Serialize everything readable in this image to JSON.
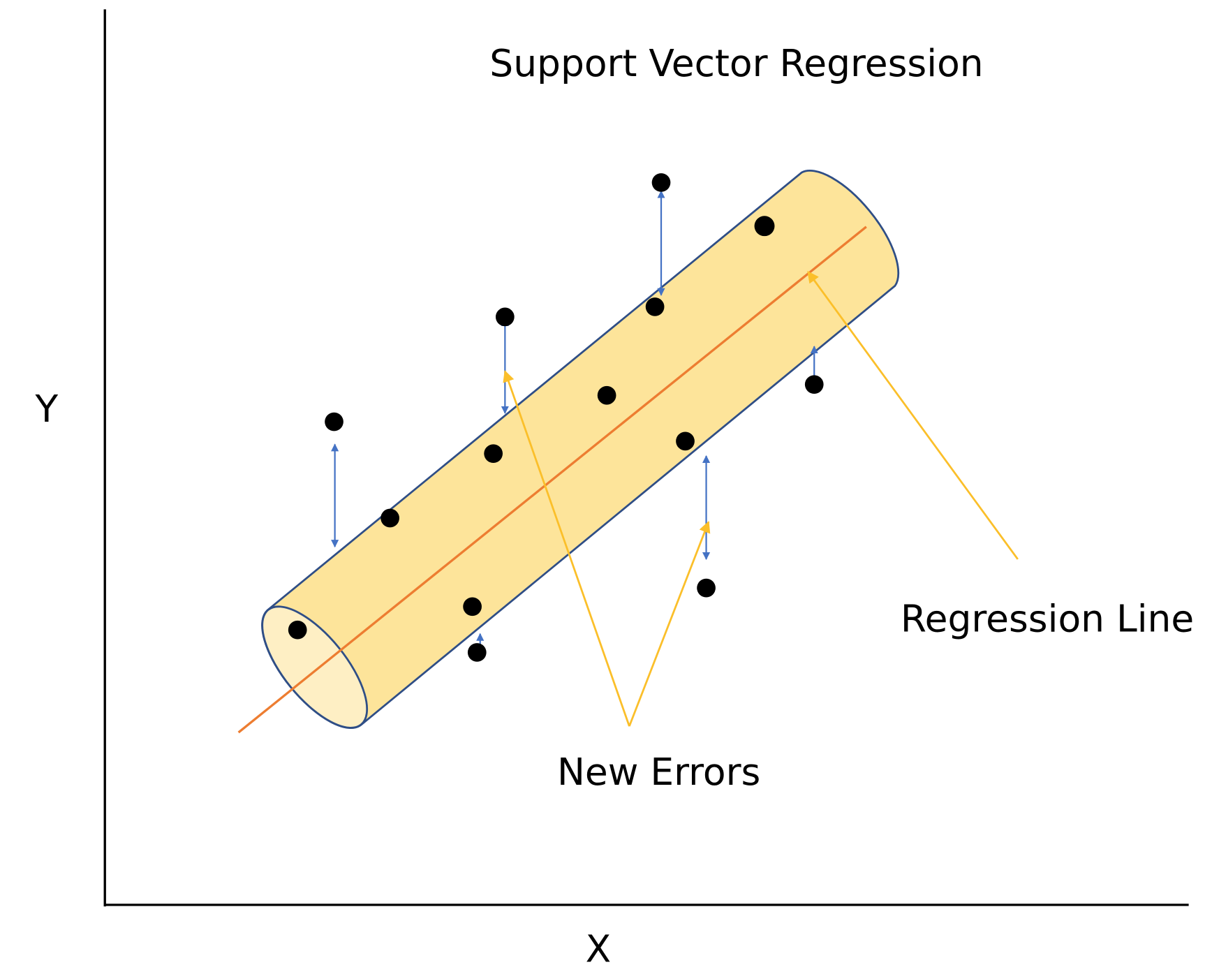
{
  "title": "Support Vector Regression",
  "axes": {
    "y_label": "Y",
    "x_label": "X"
  },
  "annotations": {
    "regression_line": "Regression Line",
    "new_errors": "New Errors"
  }
}
